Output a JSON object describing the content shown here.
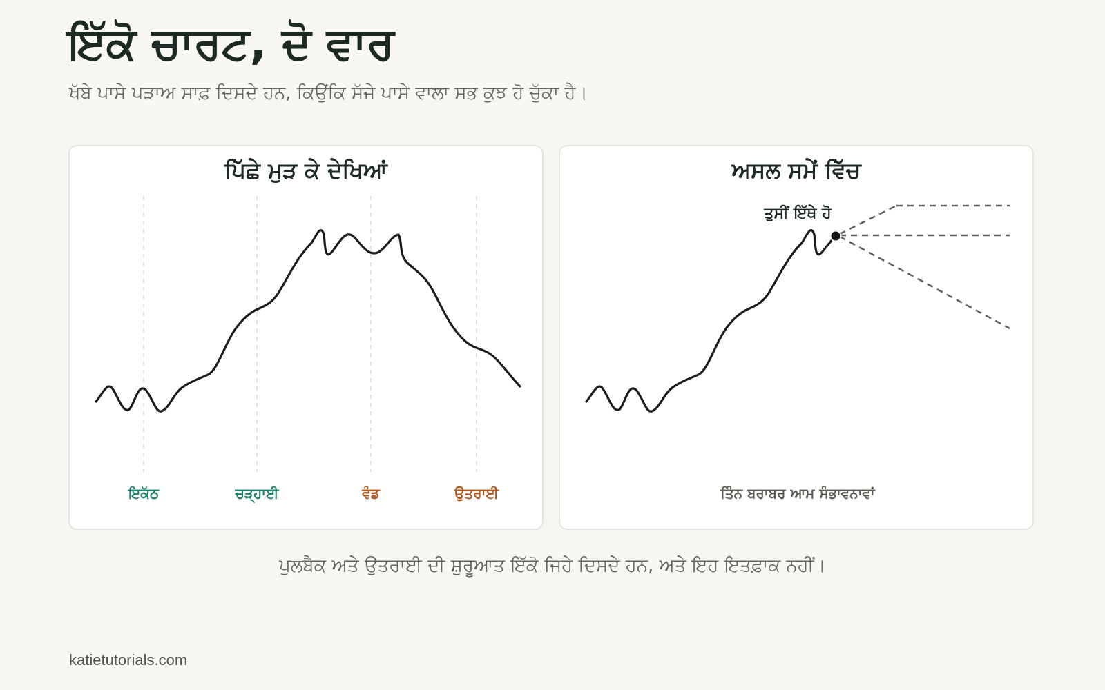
{
  "header": {
    "title": "ਇੱਕੋ ਚਾਰਟ, ਦੋ ਵਾਰ",
    "subtitle": "ਖੱਬੇ ਪਾਸੇ ਪੜਾਅ ਸਾਫ਼ ਦਿਸਦੇ ਹਨ, ਕਿਉਂਕਿ ਸੱਜੇ ਪਾਸੇ ਵਾਲਾ ਸਭ ਕੁਝ ਹੋ ਚੁੱਕਾ ਹੈ।"
  },
  "left_panel": {
    "title": "ਪਿੱਛੇ ਮੁੜ ਕੇ ਦੇਖਿਆਂ",
    "phases": [
      {
        "label": "ਇਕੱਠ",
        "color": "#17806b"
      },
      {
        "label": "ਚੜ੍ਹਾਈ",
        "color": "#17806b"
      },
      {
        "label": "ਵੰਡ",
        "color": "#b5541a"
      },
      {
        "label": "ਉਤਰਾਈ",
        "color": "#b5541a"
      }
    ]
  },
  "right_panel": {
    "title": "ਅਸਲ ਸਮੇਂ ਵਿੱਚ",
    "marker_label": "ਤੁਸੀਂ ਇੱਥੇ ਹੋ",
    "bottom_label": "ਤਿੰਨ ਬਰਾਬਰ ਆਮ ਸੰਭਾਵਨਾਵਾਂ",
    "scenario_count": 3
  },
  "caption": "ਪੁਲਬੈਕ ਅਤੇ ਉਤਰਾਈ ਦੀ ਸ਼ੁਰੂਆਤ ਇੱਕੋ ਜਿਹੇ ਦਿਸਦੇ ਹਨ, ਅਤੇ ਇਹ ਇਤਫ਼ਾਕ ਨਹੀਂ।",
  "footer": {
    "site": "katietutorials.com"
  },
  "colors": {
    "accumulation_markup": "#17806b",
    "distribution_markdown": "#b5541a",
    "price_line": "#1a1d1b",
    "scenario_line": "#5f5f5b"
  }
}
